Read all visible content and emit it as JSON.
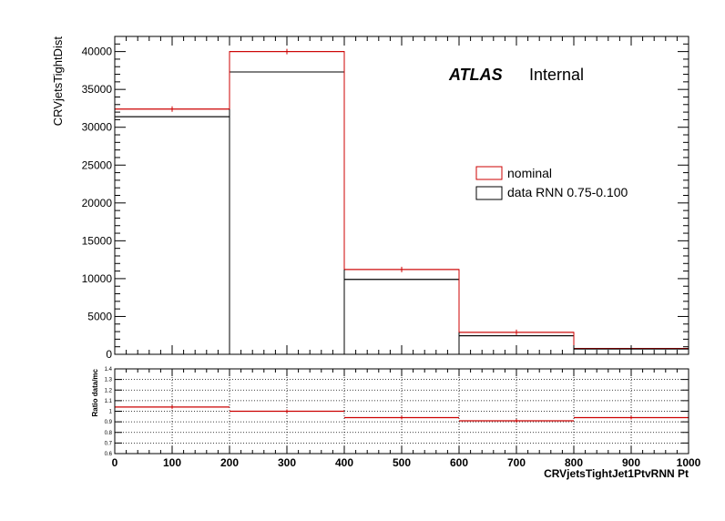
{
  "chart_data": [
    {
      "type": "histogram",
      "ylabel": "CRVjetsTightDist",
      "bin_edges": [
        0,
        200,
        400,
        600,
        800,
        1000
      ],
      "xlim": [
        0,
        1000
      ],
      "ylim": [
        0,
        42000
      ],
      "y_ticks": [
        0,
        5000,
        10000,
        15000,
        20000,
        25000,
        30000,
        35000,
        40000
      ],
      "y_tick_labels": [
        "0",
        "5000",
        "10000",
        "15000",
        "20000",
        "25000",
        "30000",
        "35000",
        "40000"
      ],
      "series": [
        {
          "name": "nominal",
          "color": "#cc0000",
          "values": [
            32400,
            40000,
            11200,
            2900,
            780
          ]
        },
        {
          "name": "data RNN 0.75-0.100",
          "color": "#000000",
          "values": [
            31400,
            37300,
            9900,
            2450,
            700
          ]
        }
      ],
      "last_bin_right_ext": [
        1000,
        1000
      ],
      "annotation": {
        "bold": "ATLAS",
        "normal": "Internal"
      },
      "legend_position": "middle-right"
    },
    {
      "type": "histogram",
      "ylabel": "Ratio data/mc",
      "xlabel": "CRVjetsTightJet1PtvRNN Pt",
      "bin_edges": [
        0,
        200,
        400,
        600,
        800,
        1000
      ],
      "xlim": [
        0,
        1000
      ],
      "ylim": [
        0.6,
        1.4
      ],
      "y_ticks": [
        0.6,
        0.7,
        0.8,
        0.9,
        1.0,
        1.1,
        1.2,
        1.3,
        1.4
      ],
      "y_tick_labels": [
        "0.6",
        "0.7",
        "0.8",
        "0.9",
        "1",
        "1.1",
        "1.2",
        "1.3",
        "1.4"
      ],
      "x_ticks": [
        0,
        100,
        200,
        300,
        400,
        500,
        600,
        700,
        800,
        900,
        1000
      ],
      "x_tick_labels": [
        "0",
        "100",
        "200",
        "300",
        "400",
        "500",
        "600",
        "700",
        "800",
        "900",
        "1000"
      ],
      "series": [
        {
          "name": "",
          "color": "#cc0000",
          "values": [
            1.04,
            1.0,
            0.94,
            0.91,
            0.94
          ]
        }
      ],
      "grid": true
    }
  ]
}
